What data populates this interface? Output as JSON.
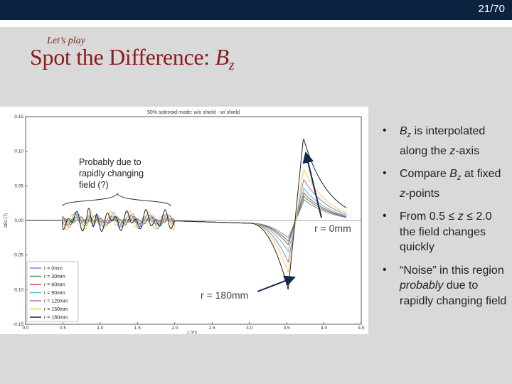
{
  "slide": {
    "number": "21/70"
  },
  "header": {
    "subtitle": "Let’s play",
    "title_prefix": "Spot the Difference: ",
    "title_var": "B",
    "title_sub": "z"
  },
  "annotation": {
    "text": "Probably due to rapidly changing field (?)"
  },
  "callouts": {
    "r0": "r = 0mm",
    "r180": "r = 180mm"
  },
  "bullets": [
    {
      "parts": [
        {
          "t": "B",
          "i": true
        },
        {
          "t": "z",
          "i": true,
          "sub": true
        },
        {
          "t": " is interpolated along the "
        },
        {
          "t": "z",
          "i": true
        },
        {
          "t": "-axis"
        }
      ]
    },
    {
      "parts": [
        {
          "t": "Compare "
        },
        {
          "t": "B",
          "i": true
        },
        {
          "t": "z",
          "i": true,
          "sub": true
        },
        {
          "t": " at fixed "
        },
        {
          "t": "z",
          "i": true
        },
        {
          "t": "-points"
        }
      ]
    },
    {
      "parts": [
        {
          "t": "From 0.5 ≤ "
        },
        {
          "t": "z",
          "i": true
        },
        {
          "t": " ≤ 2.0 the field changes quickly"
        }
      ]
    },
    {
      "parts": [
        {
          "t": "“Noise” in this region "
        },
        {
          "t": "probably",
          "i": true
        },
        {
          "t": " due to rapidly changing field"
        }
      ]
    }
  ],
  "chart_data": {
    "type": "line",
    "title": "50% solenoid mode: w/o shield - w/ shield",
    "xlabel": "z (m)",
    "ylabel": "ΔBz (T)",
    "xlim": [
      0.0,
      4.5
    ],
    "ylim": [
      -0.15,
      0.15
    ],
    "xticks": [
      "0.0",
      "0.5",
      "1.0",
      "1.5",
      "2.0",
      "2.5",
      "3.0",
      "3.5",
      "4.0",
      "4.5"
    ],
    "yticks": [
      "0.15",
      "0.10",
      "0.05",
      "0.00",
      "-0.05",
      "-0.10",
      "-0.15"
    ],
    "legend": [
      "r = 0mm",
      "r = 30mm",
      "r = 60mm",
      "r = 90mm",
      "r = 120mm",
      "r = 150mm",
      "r = 180mm"
    ],
    "colors": [
      "#7b7fd9",
      "#3a9a3a",
      "#d94040",
      "#3fc0d9",
      "#b26cc6",
      "#e0d84a",
      "#222222"
    ],
    "series_params": [
      {
        "name": "r = 0mm",
        "peak": 0.025,
        "trough": -0.025
      },
      {
        "name": "r = 30mm",
        "peak": 0.03,
        "trough": -0.03
      },
      {
        "name": "r = 60mm",
        "peak": 0.035,
        "trough": -0.035
      },
      {
        "name": "r = 90mm",
        "peak": 0.042,
        "trough": -0.045
      },
      {
        "name": "r = 120mm",
        "peak": 0.055,
        "trough": -0.06
      },
      {
        "name": "r = 150mm",
        "peak": 0.07,
        "trough": -0.075
      },
      {
        "name": "r = 180mm",
        "peak": 0.115,
        "trough": -0.1
      }
    ]
  }
}
